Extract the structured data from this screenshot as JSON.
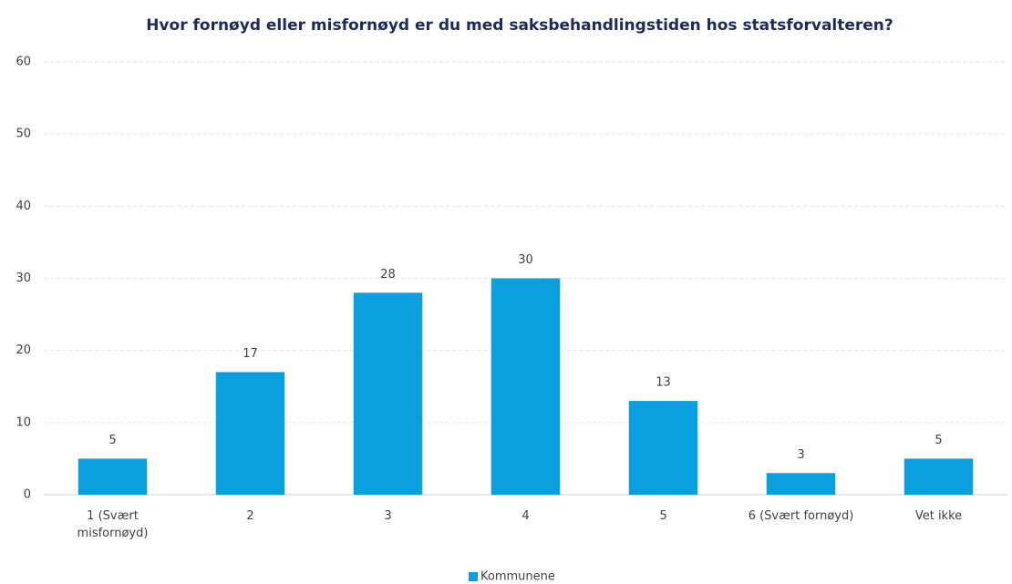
{
  "chart_data": {
    "type": "bar",
    "title": "Hvor fornøyd eller misfornøyd er du med saksbehandlingstiden hos statsforvalteren?",
    "categories": [
      "1 (Svært misfornøyd)",
      "2",
      "3",
      "4",
      "5",
      "6 (Svært fornøyd)",
      "Vet ikke"
    ],
    "series": [
      {
        "name": "Kommunene",
        "color": "#0aa0e0",
        "values": [
          5,
          17,
          28,
          30,
          13,
          3,
          5
        ]
      }
    ],
    "ylim": [
      0,
      60
    ],
    "yticks": [
      0,
      10,
      20,
      30,
      40,
      50,
      60
    ],
    "grid": true,
    "legend": "bottom"
  }
}
